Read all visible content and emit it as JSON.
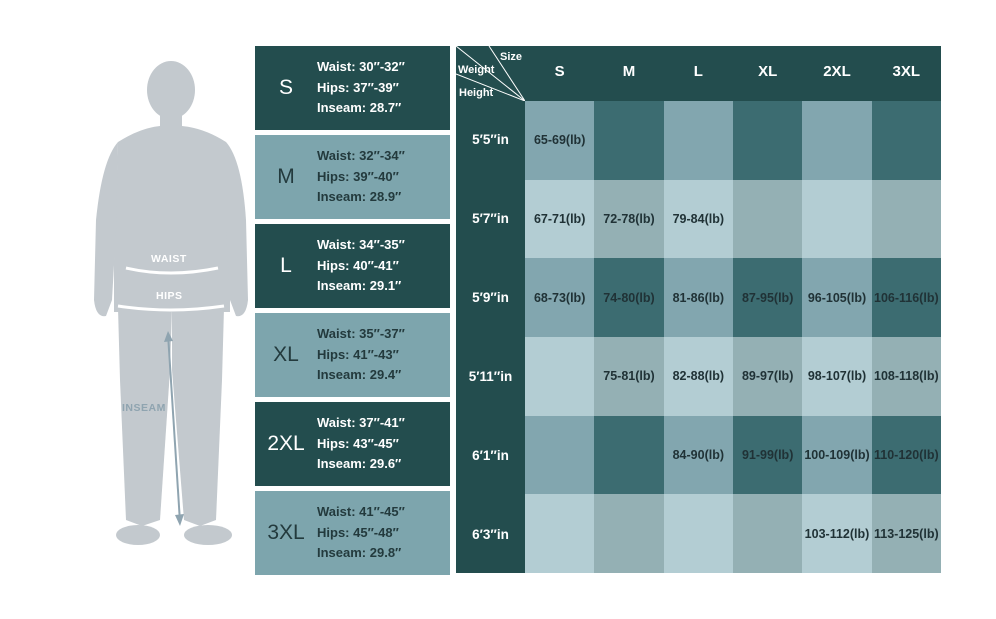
{
  "figure": {
    "waist_label": "WAIST",
    "hips_label": "HIPS",
    "inseam_label": "INSEAM"
  },
  "size_guide": [
    {
      "size": "S",
      "waist": "Waist: 30″-32″",
      "hips": "Hips: 37″-39″",
      "inseam": "Inseam: 28.7″"
    },
    {
      "size": "M",
      "waist": "Waist: 32″-34″",
      "hips": "Hips: 39″-40″",
      "inseam": "Inseam: 28.9″"
    },
    {
      "size": "L",
      "waist": "Waist: 34″-35″",
      "hips": "Hips: 40″-41″",
      "inseam": "Inseam: 29.1″"
    },
    {
      "size": "XL",
      "waist": "Waist: 35″-37″",
      "hips": "Hips: 41″-43″",
      "inseam": "Inseam: 29.4″"
    },
    {
      "size": "2XL",
      "waist": "Waist: 37″-41″",
      "hips": "Hips: 43″-45″",
      "inseam": "Inseam: 29.6″"
    },
    {
      "size": "3XL",
      "waist": "Waist: 41″-45″",
      "hips": "Hips: 45″-48″",
      "inseam": "Inseam: 29.8″"
    }
  ],
  "chart_data": {
    "type": "table",
    "corner_labels": {
      "size": "Size",
      "weight": "Weight",
      "height": "Height"
    },
    "columns": [
      "S",
      "M",
      "L",
      "XL",
      "2XL",
      "3XL"
    ],
    "rows": [
      "5′5″in",
      "5′7″in",
      "5′9″in",
      "5′11″in",
      "6′1″in",
      "6′3″in"
    ],
    "cells": [
      [
        "65-69(lb)",
        "",
        "",
        "",
        "",
        ""
      ],
      [
        "67-71(lb)",
        "72-78(lb)",
        "79-84(lb)",
        "",
        "",
        ""
      ],
      [
        "68-73(lb)",
        "74-80(lb)",
        "81-86(lb)",
        "87-95(lb)",
        "96-105(lb)",
        "106-116(lb)"
      ],
      [
        "",
        "75-81(lb)",
        "82-88(lb)",
        "89-97(lb)",
        "98-107(lb)",
        "108-118(lb)"
      ],
      [
        "",
        "",
        "84-90(lb)",
        "91-99(lb)",
        "100-109(lb)",
        "110-120(lb)"
      ],
      [
        "",
        "",
        "",
        "",
        "103-112(lb)",
        "113-125(lb)"
      ]
    ]
  },
  "colors": {
    "dark": "#234d4e",
    "light": "#7da5ad",
    "figure": "#c3c9ce",
    "grid_shades": [
      [
        "#82a6af",
        "#3c6c71",
        "#82a6af",
        "#3c6c71",
        "#82a6af",
        "#3c6c71"
      ],
      [
        "#b3cdd3",
        "#94b0b4",
        "#b3cdd3",
        "#94b0b4",
        "#b3cdd3",
        "#94b0b4"
      ],
      [
        "#82a6af",
        "#3c6c71",
        "#82a6af",
        "#3c6c71",
        "#82a6af",
        "#3c6c71"
      ],
      [
        "#b3cdd3",
        "#94b0b4",
        "#b3cdd3",
        "#94b0b4",
        "#b3cdd3",
        "#94b0b4"
      ],
      [
        "#82a6af",
        "#3c6c71",
        "#82a6af",
        "#3c6c71",
        "#82a6af",
        "#3c6c71"
      ],
      [
        "#b3cdd3",
        "#94b0b4",
        "#b3cdd3",
        "#94b0b4",
        "#b3cdd3",
        "#94b0b4"
      ]
    ]
  }
}
